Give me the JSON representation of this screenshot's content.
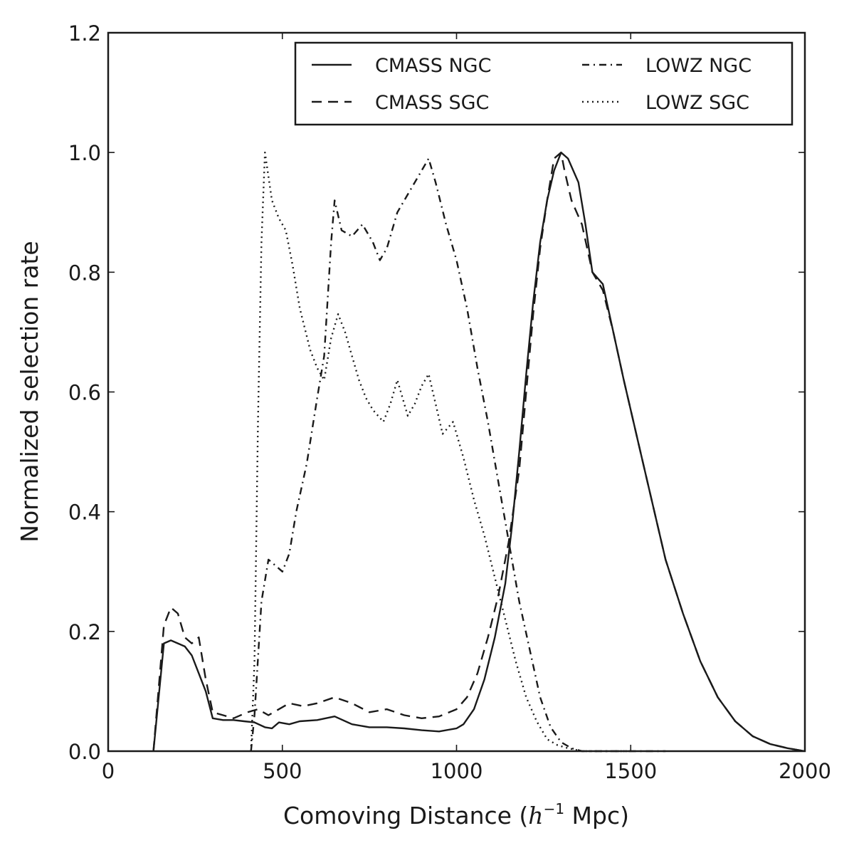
{
  "chart_data": {
    "type": "line",
    "title": "",
    "xlabel_main": "Comoving Distance (",
    "xlabel_math_base": "h",
    "xlabel_math_sup": "−1",
    "xlabel_unit": " Mpc)",
    "ylabel": "Normalized selection rate",
    "xlim": [
      0,
      2000
    ],
    "ylim": [
      0.0,
      1.2
    ],
    "xticks": [
      0,
      500,
      1000,
      1500,
      2000
    ],
    "xtick_labels": [
      "0",
      "500",
      "1000",
      "1500",
      "2000"
    ],
    "yticks": [
      0.0,
      0.2,
      0.4,
      0.6,
      0.8,
      1.0,
      1.2
    ],
    "ytick_labels": [
      "0.0",
      "0.2",
      "0.4",
      "0.6",
      "0.8",
      "1.0",
      "1.2"
    ],
    "grid": false,
    "legend_position": "top-right",
    "series": [
      {
        "name": "CMASS NGC",
        "style": "solid",
        "points": [
          [
            130,
            0.0
          ],
          [
            160,
            0.18
          ],
          [
            180,
            0.185
          ],
          [
            200,
            0.18
          ],
          [
            220,
            0.175
          ],
          [
            240,
            0.16
          ],
          [
            260,
            0.13
          ],
          [
            280,
            0.1
          ],
          [
            300,
            0.055
          ],
          [
            330,
            0.052
          ],
          [
            360,
            0.052
          ],
          [
            390,
            0.05
          ],
          [
            420,
            0.048
          ],
          [
            450,
            0.04
          ],
          [
            470,
            0.038
          ],
          [
            490,
            0.048
          ],
          [
            520,
            0.045
          ],
          [
            550,
            0.05
          ],
          [
            600,
            0.052
          ],
          [
            650,
            0.058
          ],
          [
            700,
            0.045
          ],
          [
            750,
            0.04
          ],
          [
            800,
            0.04
          ],
          [
            850,
            0.038
          ],
          [
            900,
            0.035
          ],
          [
            950,
            0.033
          ],
          [
            1000,
            0.038
          ],
          [
            1020,
            0.045
          ],
          [
            1050,
            0.07
          ],
          [
            1080,
            0.12
          ],
          [
            1110,
            0.19
          ],
          [
            1140,
            0.28
          ],
          [
            1160,
            0.38
          ],
          [
            1180,
            0.5
          ],
          [
            1200,
            0.63
          ],
          [
            1220,
            0.75
          ],
          [
            1240,
            0.85
          ],
          [
            1260,
            0.92
          ],
          [
            1280,
            0.97
          ],
          [
            1300,
            1.0
          ],
          [
            1320,
            0.99
          ],
          [
            1350,
            0.95
          ],
          [
            1370,
            0.88
          ],
          [
            1390,
            0.8
          ],
          [
            1420,
            0.78
          ],
          [
            1450,
            0.7
          ],
          [
            1480,
            0.62
          ],
          [
            1520,
            0.52
          ],
          [
            1560,
            0.42
          ],
          [
            1600,
            0.32
          ],
          [
            1650,
            0.23
          ],
          [
            1700,
            0.15
          ],
          [
            1750,
            0.09
          ],
          [
            1800,
            0.05
          ],
          [
            1850,
            0.025
          ],
          [
            1900,
            0.012
          ],
          [
            1950,
            0.005
          ],
          [
            2000,
            0.0
          ]
        ]
      },
      {
        "name": "CMASS SGC",
        "style": "dashed",
        "points": [
          [
            130,
            0.0
          ],
          [
            160,
            0.21
          ],
          [
            180,
            0.24
          ],
          [
            200,
            0.23
          ],
          [
            220,
            0.19
          ],
          [
            240,
            0.18
          ],
          [
            260,
            0.19
          ],
          [
            280,
            0.12
          ],
          [
            300,
            0.065
          ],
          [
            330,
            0.06
          ],
          [
            360,
            0.055
          ],
          [
            400,
            0.065
          ],
          [
            430,
            0.07
          ],
          [
            460,
            0.06
          ],
          [
            490,
            0.07
          ],
          [
            520,
            0.08
          ],
          [
            560,
            0.075
          ],
          [
            600,
            0.08
          ],
          [
            650,
            0.09
          ],
          [
            700,
            0.08
          ],
          [
            750,
            0.065
          ],
          [
            800,
            0.07
          ],
          [
            850,
            0.06
          ],
          [
            900,
            0.055
          ],
          [
            950,
            0.058
          ],
          [
            1000,
            0.07
          ],
          [
            1030,
            0.09
          ],
          [
            1060,
            0.13
          ],
          [
            1090,
            0.19
          ],
          [
            1120,
            0.26
          ],
          [
            1150,
            0.35
          ],
          [
            1180,
            0.47
          ],
          [
            1200,
            0.6
          ],
          [
            1220,
            0.73
          ],
          [
            1240,
            0.84
          ],
          [
            1260,
            0.92
          ],
          [
            1280,
            0.99
          ],
          [
            1300,
            1.0
          ],
          [
            1310,
            0.97
          ],
          [
            1330,
            0.92
          ],
          [
            1360,
            0.88
          ],
          [
            1390,
            0.8
          ],
          [
            1420,
            0.77
          ],
          [
            1450,
            0.7
          ],
          [
            1480,
            0.62
          ],
          [
            1520,
            0.52
          ],
          [
            1560,
            0.42
          ],
          [
            1600,
            0.32
          ],
          [
            1650,
            0.23
          ],
          [
            1700,
            0.15
          ],
          [
            1750,
            0.09
          ],
          [
            1800,
            0.05
          ],
          [
            1850,
            0.025
          ],
          [
            1900,
            0.012
          ],
          [
            1950,
            0.005
          ],
          [
            2000,
            0.0
          ]
        ]
      },
      {
        "name": "LOWZ NGC",
        "style": "dashdot",
        "points": [
          [
            410,
            0.0
          ],
          [
            420,
            0.06
          ],
          [
            440,
            0.25
          ],
          [
            460,
            0.32
          ],
          [
            480,
            0.31
          ],
          [
            500,
            0.3
          ],
          [
            520,
            0.33
          ],
          [
            540,
            0.4
          ],
          [
            570,
            0.48
          ],
          [
            600,
            0.59
          ],
          [
            620,
            0.66
          ],
          [
            640,
            0.85
          ],
          [
            650,
            0.92
          ],
          [
            670,
            0.87
          ],
          [
            700,
            0.86
          ],
          [
            730,
            0.88
          ],
          [
            760,
            0.85
          ],
          [
            780,
            0.82
          ],
          [
            800,
            0.84
          ],
          [
            830,
            0.9
          ],
          [
            860,
            0.93
          ],
          [
            890,
            0.96
          ],
          [
            920,
            0.99
          ],
          [
            940,
            0.95
          ],
          [
            970,
            0.88
          ],
          [
            1000,
            0.82
          ],
          [
            1030,
            0.74
          ],
          [
            1060,
            0.64
          ],
          [
            1090,
            0.55
          ],
          [
            1120,
            0.45
          ],
          [
            1150,
            0.35
          ],
          [
            1180,
            0.25
          ],
          [
            1210,
            0.17
          ],
          [
            1240,
            0.09
          ],
          [
            1270,
            0.04
          ],
          [
            1300,
            0.015
          ],
          [
            1330,
            0.005
          ],
          [
            1360,
            0.0
          ],
          [
            1400,
            0.0
          ],
          [
            1600,
            0.0
          ]
        ]
      },
      {
        "name": "LOWZ SGC",
        "style": "dotted",
        "points": [
          [
            410,
            0.0
          ],
          [
            420,
            0.15
          ],
          [
            430,
            0.55
          ],
          [
            440,
            0.85
          ],
          [
            450,
            1.0
          ],
          [
            470,
            0.92
          ],
          [
            490,
            0.89
          ],
          [
            510,
            0.87
          ],
          [
            530,
            0.81
          ],
          [
            550,
            0.74
          ],
          [
            580,
            0.67
          ],
          [
            600,
            0.64
          ],
          [
            620,
            0.62
          ],
          [
            640,
            0.69
          ],
          [
            660,
            0.73
          ],
          [
            680,
            0.7
          ],
          [
            700,
            0.66
          ],
          [
            720,
            0.62
          ],
          [
            740,
            0.59
          ],
          [
            760,
            0.57
          ],
          [
            790,
            0.55
          ],
          [
            810,
            0.58
          ],
          [
            830,
            0.62
          ],
          [
            860,
            0.56
          ],
          [
            880,
            0.58
          ],
          [
            900,
            0.61
          ],
          [
            920,
            0.63
          ],
          [
            940,
            0.58
          ],
          [
            960,
            0.53
          ],
          [
            990,
            0.55
          ],
          [
            1020,
            0.49
          ],
          [
            1050,
            0.42
          ],
          [
            1080,
            0.36
          ],
          [
            1110,
            0.29
          ],
          [
            1140,
            0.22
          ],
          [
            1170,
            0.15
          ],
          [
            1200,
            0.09
          ],
          [
            1230,
            0.05
          ],
          [
            1260,
            0.02
          ],
          [
            1290,
            0.01
          ],
          [
            1320,
            0.005
          ],
          [
            1360,
            0.0
          ],
          [
            1500,
            0.0
          ]
        ]
      }
    ]
  }
}
